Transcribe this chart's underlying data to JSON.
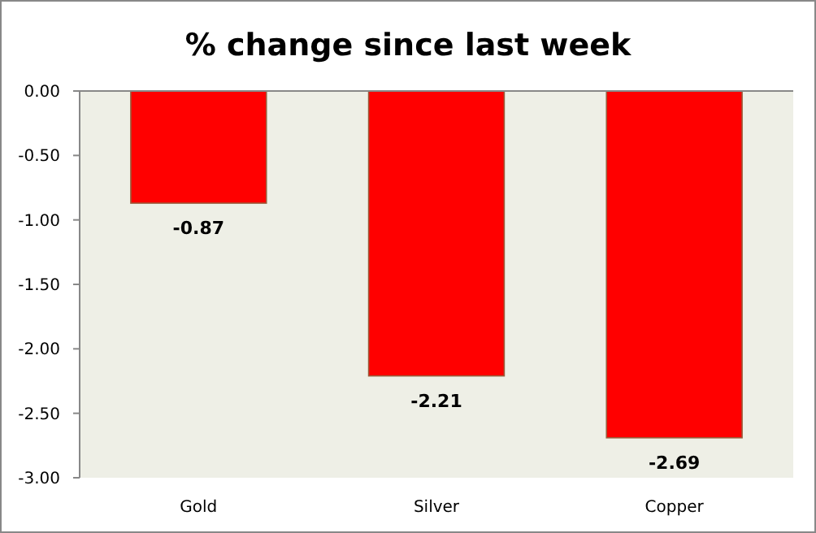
{
  "chart_data": {
    "type": "bar",
    "title": "% change since last week",
    "categories": [
      "Gold",
      "Silver",
      "Copper"
    ],
    "values": [
      -0.87,
      -2.21,
      -2.69
    ],
    "color": "#ff0000",
    "ylim": [
      -3,
      0
    ],
    "yticks": [
      {
        "value": 0,
        "label": "0.00"
      },
      {
        "value": -0.5,
        "label": "-0.50"
      },
      {
        "value": -1,
        "label": "-1.00"
      },
      {
        "value": -1.5,
        "label": "-1.50"
      },
      {
        "value": -2,
        "label": "-2.00"
      },
      {
        "value": -2.5,
        "label": "-2.50"
      },
      {
        "value": -3,
        "label": "-3.00"
      }
    ],
    "data_labels": true
  }
}
